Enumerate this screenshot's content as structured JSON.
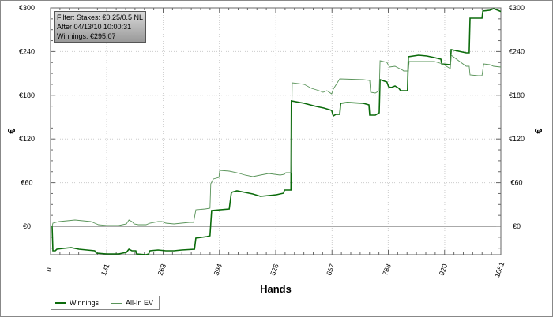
{
  "info_box": {
    "line1": "Filter: Stakes: €0.25/0.5 NL",
    "line2": "After 04/13/10 10:00:31",
    "line3": "Winnings: €295.07"
  },
  "chart_data": {
    "type": "line",
    "title": "",
    "xlabel": "Hands",
    "ylabel": "€",
    "xlim": [
      0,
      1051
    ],
    "ylim": [
      -39,
      300
    ],
    "x_ticks": [
      0,
      131,
      263,
      394,
      526,
      657,
      788,
      920,
      1051
    ],
    "x_tick_labels": [
      "0",
      "131",
      "263",
      "394",
      "526",
      "657",
      "788",
      "920",
      "1051"
    ],
    "y_ticks": [
      0,
      60,
      120,
      180,
      240,
      300
    ],
    "y_tick_labels": [
      "€0",
      "€60",
      "€120",
      "€180",
      "€240",
      "€300"
    ],
    "grid": true,
    "legend_position": "bottom-left",
    "series": [
      {
        "name": "Winnings",
        "color": "#0b6b0b",
        "points": [
          [
            0,
            0
          ],
          [
            3.7,
            0
          ],
          [
            5.5,
            -33.6
          ],
          [
            11,
            -33.6
          ],
          [
            14.8,
            -31.4
          ],
          [
            29.5,
            -30.3
          ],
          [
            47.9,
            -29.2
          ],
          [
            66.4,
            -31.4
          ],
          [
            84.8,
            -32.5
          ],
          [
            103,
            -33.6
          ],
          [
            107,
            -36.8
          ],
          [
            131,
            -37.9
          ],
          [
            159,
            -37.9
          ],
          [
            177,
            -35.7
          ],
          [
            183,
            -31.4
          ],
          [
            190,
            -33.6
          ],
          [
            199,
            -33.6
          ],
          [
            201,
            -37.9
          ],
          [
            223,
            -39
          ],
          [
            229,
            -37.9
          ],
          [
            232,
            -33.6
          ],
          [
            251,
            -32.5
          ],
          [
            269,
            -33.6
          ],
          [
            288,
            -33.6
          ],
          [
            306,
            -32.5
          ],
          [
            336,
            -31.4
          ],
          [
            339,
            -16.2
          ],
          [
            352,
            -15.2
          ],
          [
            365,
            -14.1
          ],
          [
            372,
            -13
          ],
          [
            376,
            21.7
          ],
          [
            417,
            23.8
          ],
          [
            422,
            46.6
          ],
          [
            435,
            48.7
          ],
          [
            454,
            46.6
          ],
          [
            472,
            44.4
          ],
          [
            490,
            41.2
          ],
          [
            509,
            42.2
          ],
          [
            527,
            43.3
          ],
          [
            544,
            45.5
          ],
          [
            546,
            49.8
          ],
          [
            561,
            49.8
          ],
          [
            562,
            172.2
          ],
          [
            592,
            169
          ],
          [
            620,
            164.6
          ],
          [
            638,
            162.5
          ],
          [
            656,
            159.2
          ],
          [
            660,
            151.6
          ],
          [
            666,
            153.8
          ],
          [
            675,
            153.8
          ],
          [
            677,
            169
          ],
          [
            693,
            170
          ],
          [
            730,
            169
          ],
          [
            743,
            166.8
          ],
          [
            745,
            152.7
          ],
          [
            758,
            152.7
          ],
          [
            767,
            156
          ],
          [
            769,
            201.4
          ],
          [
            785,
            198.2
          ],
          [
            789,
            191.7
          ],
          [
            795,
            190.6
          ],
          [
            804,
            192.8
          ],
          [
            813,
            189.5
          ],
          [
            817,
            186.3
          ],
          [
            833,
            186.3
          ],
          [
            835,
            232.8
          ],
          [
            859,
            235
          ],
          [
            878,
            233.9
          ],
          [
            896,
            231.8
          ],
          [
            911,
            229.6
          ],
          [
            913,
            223.1
          ],
          [
            933,
            222
          ],
          [
            935,
            242.6
          ],
          [
            970,
            238.3
          ],
          [
            977,
            238.3
          ],
          [
            979,
            285.9
          ],
          [
            1007,
            285.9
          ],
          [
            1009,
            295.7
          ],
          [
            1025,
            296.7
          ],
          [
            1034,
            298.9
          ],
          [
            1044,
            296.7
          ],
          [
            1051,
            295.07
          ]
        ]
      },
      {
        "name": "All-In EV",
        "color": "#5a945a",
        "points": [
          [
            0,
            0
          ],
          [
            3.7,
            0
          ],
          [
            5.5,
            4.3
          ],
          [
            20,
            6.5
          ],
          [
            38.7,
            7.6
          ],
          [
            57,
            8.7
          ],
          [
            75.6,
            7.6
          ],
          [
            94,
            6.5
          ],
          [
            103,
            4.3
          ],
          [
            112,
            2.2
          ],
          [
            131,
            1.1
          ],
          [
            159,
            1.1
          ],
          [
            177,
            3.2
          ],
          [
            183,
            8.7
          ],
          [
            190,
            6.5
          ],
          [
            195,
            3.2
          ],
          [
            205,
            2.2
          ],
          [
            223,
            2.2
          ],
          [
            232,
            4.3
          ],
          [
            251,
            6.5
          ],
          [
            260,
            6.5
          ],
          [
            269,
            4.3
          ],
          [
            288,
            3.2
          ],
          [
            306,
            4.3
          ],
          [
            324,
            5.4
          ],
          [
            334,
            5.4
          ],
          [
            339,
            22.7
          ],
          [
            361,
            23.8
          ],
          [
            372,
            24.9
          ],
          [
            374,
            58.5
          ],
          [
            380,
            65
          ],
          [
            393,
            67.1
          ],
          [
            395,
            76.9
          ],
          [
            417,
            75.8
          ],
          [
            435,
            73.6
          ],
          [
            454,
            70.4
          ],
          [
            472,
            68.2
          ],
          [
            490,
            70.4
          ],
          [
            509,
            72.6
          ],
          [
            536,
            70.4
          ],
          [
            546,
            71.5
          ],
          [
            549,
            73.6
          ],
          [
            561,
            73.6
          ],
          [
            564,
            197.1
          ],
          [
            592,
            194.9
          ],
          [
            609,
            189.5
          ],
          [
            627,
            186.3
          ],
          [
            636,
            184.1
          ],
          [
            645,
            186.3
          ],
          [
            656,
            181.9
          ],
          [
            660,
            188.4
          ],
          [
            675,
            202.5
          ],
          [
            730,
            201.4
          ],
          [
            745,
            200.4
          ],
          [
            747,
            184.1
          ],
          [
            758,
            183
          ],
          [
            767,
            186.3
          ],
          [
            769,
            227.4
          ],
          [
            785,
            225.3
          ],
          [
            791,
            218.8
          ],
          [
            804,
            219.9
          ],
          [
            822,
            214.4
          ],
          [
            824,
            213.4
          ],
          [
            835,
            213.4
          ],
          [
            837,
            226.4
          ],
          [
            878,
            226.4
          ],
          [
            896,
            226.4
          ],
          [
            915,
            223.1
          ],
          [
            933,
            216.6
          ],
          [
            935,
            235
          ],
          [
            970,
            219.9
          ],
          [
            977,
            219.9
          ],
          [
            979,
            207.9
          ],
          [
            998,
            206.9
          ],
          [
            1007,
            206.9
          ],
          [
            1011,
            223.1
          ],
          [
            1025,
            222
          ],
          [
            1034,
            219.9
          ],
          [
            1051,
            218.8
          ]
        ]
      }
    ]
  }
}
